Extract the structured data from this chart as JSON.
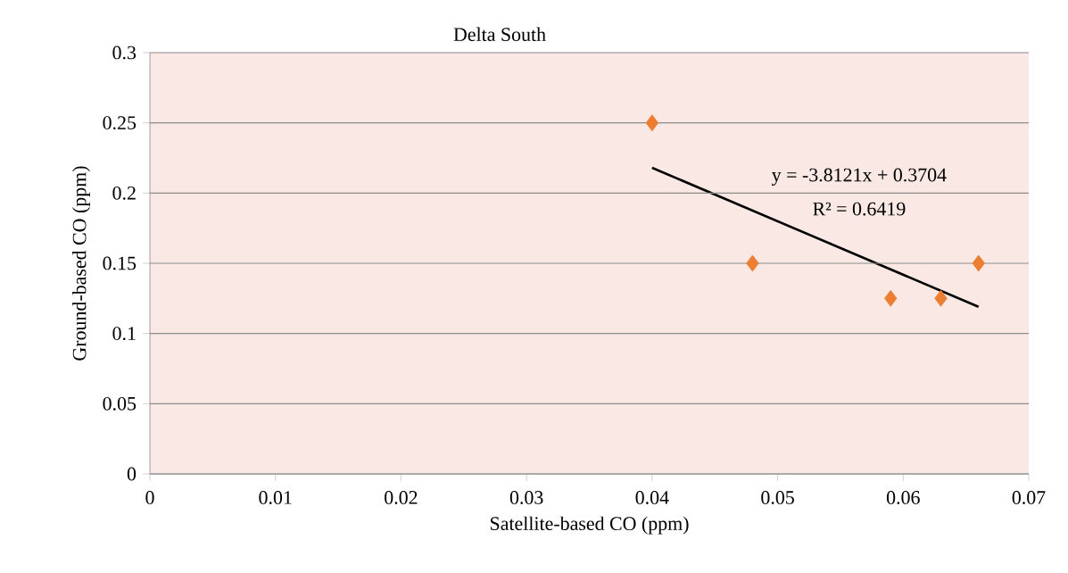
{
  "chart_data": {
    "type": "scatter",
    "title": "Delta South",
    "xlabel": "Satellite-based CO (ppm)",
    "ylabel": "Ground-based CO (ppm)",
    "xlim": [
      0,
      0.07
    ],
    "ylim": [
      0,
      0.3
    ],
    "xticks": [
      0,
      0.01,
      0.02,
      0.03,
      0.04,
      0.05,
      0.06,
      0.07
    ],
    "yticks": [
      0,
      0.05,
      0.1,
      0.15,
      0.2,
      0.25,
      0.3
    ],
    "grid": "y",
    "marker": "diamond",
    "series": [
      {
        "color": "#ed7d31",
        "x": [
          0.04,
          0.048,
          0.059,
          0.063,
          0.066
        ],
        "values": [
          0.25,
          0.15,
          0.125,
          0.125,
          0.15
        ]
      },
      {
        "type": "line",
        "color": "#000000",
        "marker": "none",
        "x": [
          0.04,
          0.066
        ],
        "values": [
          0.218,
          0.119
        ]
      }
    ],
    "annotations": [
      "y = -3.8121x + 0.3704",
      "R² = 0.6419"
    ]
  }
}
